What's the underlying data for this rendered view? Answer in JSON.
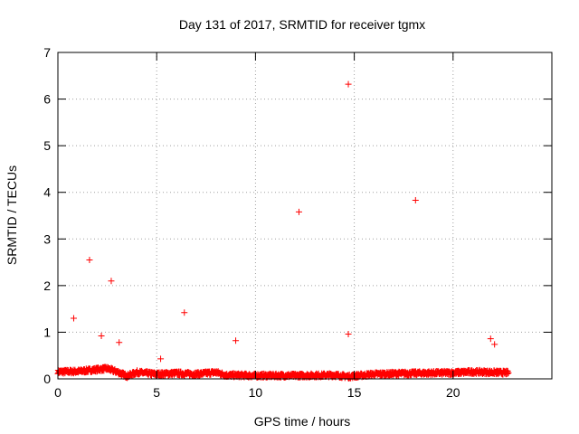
{
  "chart_data": {
    "type": "scatter",
    "title": "Day 131 of 2017, SRMTID for receiver tgmx",
    "xlabel": "GPS time / hours",
    "ylabel": "SRMTID / TECUs",
    "xlim": [
      0,
      25
    ],
    "ylim": [
      0,
      7
    ],
    "xticks": [
      0,
      5,
      10,
      15,
      20
    ],
    "yticks": [
      0,
      1,
      2,
      3,
      4,
      5,
      6,
      7
    ],
    "grid": true,
    "marker": "+",
    "series": [
      {
        "name": "SRMTID",
        "color": "#ff0000",
        "outliers": [
          {
            "x": 0.8,
            "y": 1.3
          },
          {
            "x": 1.6,
            "y": 2.55
          },
          {
            "x": 2.2,
            "y": 0.92
          },
          {
            "x": 2.7,
            "y": 2.1
          },
          {
            "x": 3.1,
            "y": 0.78
          },
          {
            "x": 5.2,
            "y": 0.43
          },
          {
            "x": 6.4,
            "y": 1.42
          },
          {
            "x": 9.0,
            "y": 0.82
          },
          {
            "x": 12.2,
            "y": 3.58
          },
          {
            "x": 14.7,
            "y": 6.32
          },
          {
            "x": 14.7,
            "y": 0.96
          },
          {
            "x": 18.1,
            "y": 3.83
          },
          {
            "x": 21.9,
            "y": 0.86
          },
          {
            "x": 22.1,
            "y": 0.74
          }
        ],
        "baseline": {
          "x_start": 0,
          "x_end": 22.8,
          "typical_y": 0.12,
          "profile": [
            [
              0,
              0.15
            ],
            [
              1,
              0.16
            ],
            [
              2,
              0.2
            ],
            [
              2.5,
              0.22
            ],
            [
              3,
              0.15
            ],
            [
              3.5,
              0.06
            ],
            [
              4,
              0.14
            ],
            [
              5,
              0.1
            ],
            [
              6,
              0.12
            ],
            [
              7,
              0.1
            ],
            [
              8,
              0.14
            ],
            [
              8.5,
              0.08
            ],
            [
              10,
              0.07
            ],
            [
              12,
              0.07
            ],
            [
              14,
              0.08
            ],
            [
              14.7,
              0.05
            ],
            [
              16,
              0.1
            ],
            [
              18,
              0.12
            ],
            [
              20,
              0.13
            ],
            [
              21,
              0.15
            ],
            [
              22,
              0.14
            ],
            [
              22.8,
              0.13
            ]
          ]
        }
      }
    ]
  }
}
